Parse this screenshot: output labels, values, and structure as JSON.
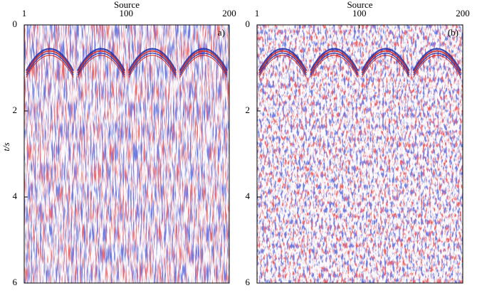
{
  "chart_data": [
    {
      "type": "image",
      "xlabel": "Source",
      "xlim": [
        1,
        200
      ],
      "xticks": [
        1,
        100,
        200
      ],
      "ylabel": "t/s",
      "ylim": [
        0,
        6
      ],
      "yticks": [
        0,
        2,
        4,
        6
      ],
      "annotation": "a)"
    },
    {
      "type": "image",
      "xlabel": "Source",
      "xlim": [
        1,
        200
      ],
      "xticks": [
        1,
        100,
        200
      ],
      "ylim": [
        0,
        6
      ],
      "yticks": [
        0,
        2,
        4,
        6
      ],
      "annotation": "(b)"
    }
  ]
}
